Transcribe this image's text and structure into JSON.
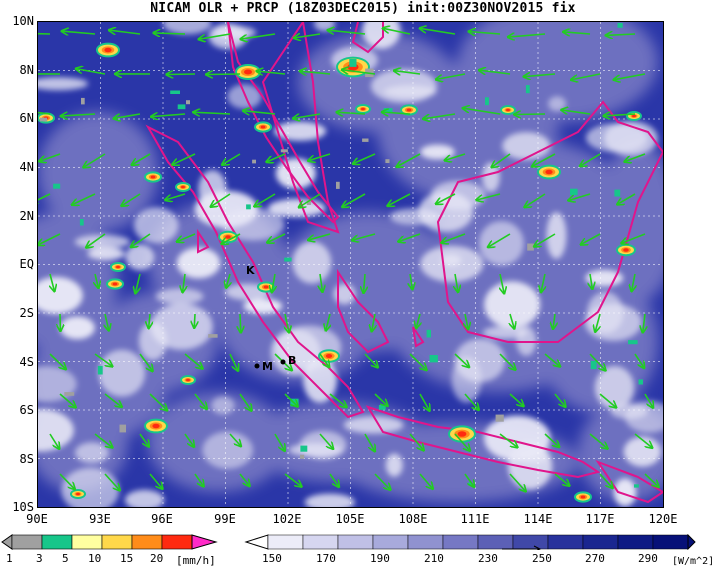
{
  "title": "NICAM OLR + PRCP (18Z03DEC2015) init:00Z30NOV2015 fix",
  "map": {
    "lat_labels": [
      "10N",
      "8N",
      "6N",
      "4N",
      "2N",
      "EQ",
      "2S",
      "4S",
      "6S",
      "8S",
      "10S"
    ],
    "lon_labels": [
      "90E",
      "93E",
      "96E",
      "99E",
      "102E",
      "105E",
      "108E",
      "111E",
      "114E",
      "117E",
      "120E"
    ],
    "station_markers": [
      "K",
      "M",
      "B"
    ]
  },
  "precip_colorbar": {
    "ticks": [
      "1",
      "3",
      "5",
      "10",
      "15",
      "20"
    ],
    "unit": "[mm/h]",
    "colors": [
      "#a0a0a0",
      "#17c68a",
      "#ffffa0",
      "#ffd84a",
      "#ff8c1a",
      "#ff2a10",
      "#ff2bc8"
    ]
  },
  "olr_colorbar": {
    "ticks": [
      "150",
      "170",
      "190",
      "210",
      "230",
      "250",
      "270",
      "290"
    ],
    "unit": "[W/m^2]",
    "colors": [
      "#ffffff",
      "#ececf8",
      "#d6d6f0",
      "#c0c0e6",
      "#a8aadc",
      "#9092d0",
      "#7678c4",
      "#5c60b6",
      "#4048a8",
      "#28329c",
      "#1a2690",
      "#0e1a84",
      "#061078"
    ]
  },
  "colors": {
    "coastline": "#e0158c",
    "wind_vectors": "#22cc22",
    "ocean_base": "#2a36a8"
  }
}
